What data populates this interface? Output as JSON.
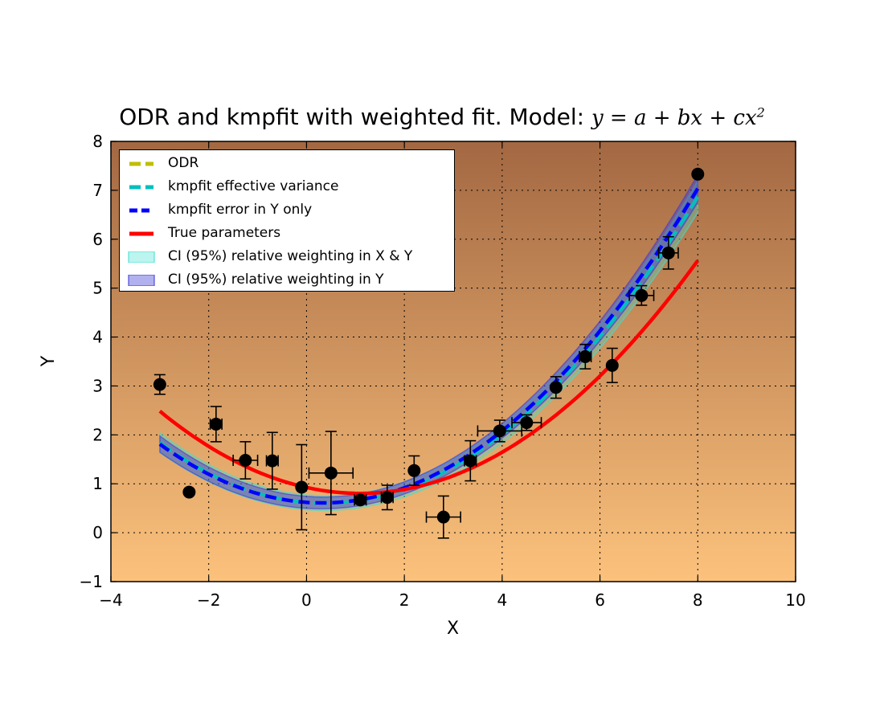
{
  "title": {
    "text": "ODR and kmpfit with weighted fit. Model: ",
    "math_lhs": "y",
    "math_rhs": "= a + bx + cx",
    "math_exp": "2"
  },
  "colors": {
    "background_top": "#a36842",
    "background_bottom": "#fcc27c",
    "odr": "#bfbf00",
    "kmpfit_eff": "#00bfbf",
    "kmpfit_y": "#0000ff",
    "true_params": "#ff0000",
    "ci_xy": "#40e0d0",
    "ci_y": "#3b3bd9",
    "points": "#000000"
  },
  "chart_data": {
    "type": "scatter",
    "title": "ODR and kmpfit with weighted fit. Model: y = a + bx + cx^2",
    "xlabel": "X",
    "ylabel": "Y",
    "xlim": [
      -4,
      10
    ],
    "ylim": [
      -1,
      8
    ],
    "xticks": [
      -4,
      -2,
      0,
      2,
      4,
      6,
      8,
      10
    ],
    "yticks": [
      -1,
      0,
      1,
      2,
      3,
      4,
      5,
      6,
      7,
      8
    ],
    "xtick_labels": [
      "−4",
      "−2",
      "0",
      "2",
      "4",
      "6",
      "8",
      "10"
    ],
    "ytick_labels": [
      "−1",
      "0",
      "1",
      "2",
      "3",
      "4",
      "5",
      "6",
      "7",
      "8"
    ],
    "grid": true,
    "legend_position": "top-left",
    "background": "vertical gradient",
    "series": [
      {
        "name": "ODR",
        "kind": "curve",
        "style": "dashed",
        "a": 0.62,
        "b": -0.083,
        "c": 0.108
      },
      {
        "name": "kmpfit effective variance",
        "kind": "curve",
        "style": "dashed",
        "a": 0.62,
        "b": -0.083,
        "c": 0.108
      },
      {
        "name": "kmpfit error in Y only",
        "kind": "curve",
        "style": "dashed",
        "a": 0.62,
        "b": -0.07,
        "c": 0.109
      },
      {
        "name": "True parameters",
        "kind": "curve",
        "style": "solid",
        "a": 0.925,
        "b": -0.22,
        "c": 0.1
      },
      {
        "name": "CI (95%) relative weighting in X & Y",
        "kind": "band",
        "halfwidth_at_ends": 0.32,
        "halfwidth_mid": 0.15
      },
      {
        "name": "CI (95%) relative weighting in Y",
        "kind": "band",
        "halfwidth_at_ends": 0.28,
        "halfwidth_mid": 0.12
      }
    ],
    "x_range_fit": [
      -3,
      8
    ],
    "points": [
      {
        "x": -3.0,
        "y": 3.03,
        "xerr": 0.0,
        "yerr": 0.2
      },
      {
        "x": -2.4,
        "y": 0.83,
        "xerr": 0.0,
        "yerr": 0.0
      },
      {
        "x": -1.85,
        "y": 2.22,
        "xerr": 0.12,
        "yerr": 0.36
      },
      {
        "x": -1.25,
        "y": 1.48,
        "xerr": 0.25,
        "yerr": 0.38
      },
      {
        "x": -0.7,
        "y": 1.47,
        "xerr": 0.12,
        "yerr": 0.58
      },
      {
        "x": -0.1,
        "y": 0.93,
        "xerr": 0.0,
        "yerr": 0.87
      },
      {
        "x": 0.5,
        "y": 1.22,
        "xerr": 0.45,
        "yerr": 0.85
      },
      {
        "x": 1.1,
        "y": 0.67,
        "xerr": 0.12,
        "yerr": 0.0
      },
      {
        "x": 1.65,
        "y": 0.72,
        "xerr": 0.12,
        "yerr": 0.25
      },
      {
        "x": 2.2,
        "y": 1.27,
        "xerr": 0.0,
        "yerr": 0.3
      },
      {
        "x": 2.8,
        "y": 0.32,
        "xerr": 0.35,
        "yerr": 0.43
      },
      {
        "x": 3.35,
        "y": 1.47,
        "xerr": 0.12,
        "yerr": 0.41
      },
      {
        "x": 3.95,
        "y": 2.08,
        "xerr": 0.45,
        "yerr": 0.22
      },
      {
        "x": 4.5,
        "y": 2.25,
        "xerr": 0.3,
        "yerr": 0.16
      },
      {
        "x": 5.1,
        "y": 2.97,
        "xerr": 0.0,
        "yerr": 0.22
      },
      {
        "x": 5.7,
        "y": 3.6,
        "xerr": 0.12,
        "yerr": 0.25
      },
      {
        "x": 6.25,
        "y": 3.42,
        "xerr": 0.0,
        "yerr": 0.35
      },
      {
        "x": 6.85,
        "y": 4.85,
        "xerr": 0.25,
        "yerr": 0.2
      },
      {
        "x": 7.4,
        "y": 5.72,
        "xerr": 0.2,
        "yerr": 0.33
      },
      {
        "x": 8.0,
        "y": 7.33,
        "xerr": 0.0,
        "yerr": 0.0
      }
    ]
  },
  "legend": {
    "items": [
      {
        "label": "ODR",
        "symbol": "dash",
        "color_key": "odr"
      },
      {
        "label": "kmpfit effective variance",
        "symbol": "dash",
        "color_key": "kmpfit_eff"
      },
      {
        "label": "kmpfit error in Y only",
        "symbol": "dash",
        "color_key": "kmpfit_y"
      },
      {
        "label": "True parameters",
        "symbol": "line",
        "color_key": "true_params"
      },
      {
        "label": "CI (95%) relative weighting in X & Y",
        "symbol": "box",
        "color_key": "ci_xy"
      },
      {
        "label": "CI (95%) relative weighting in Y",
        "symbol": "box",
        "color_key": "ci_y"
      }
    ]
  }
}
